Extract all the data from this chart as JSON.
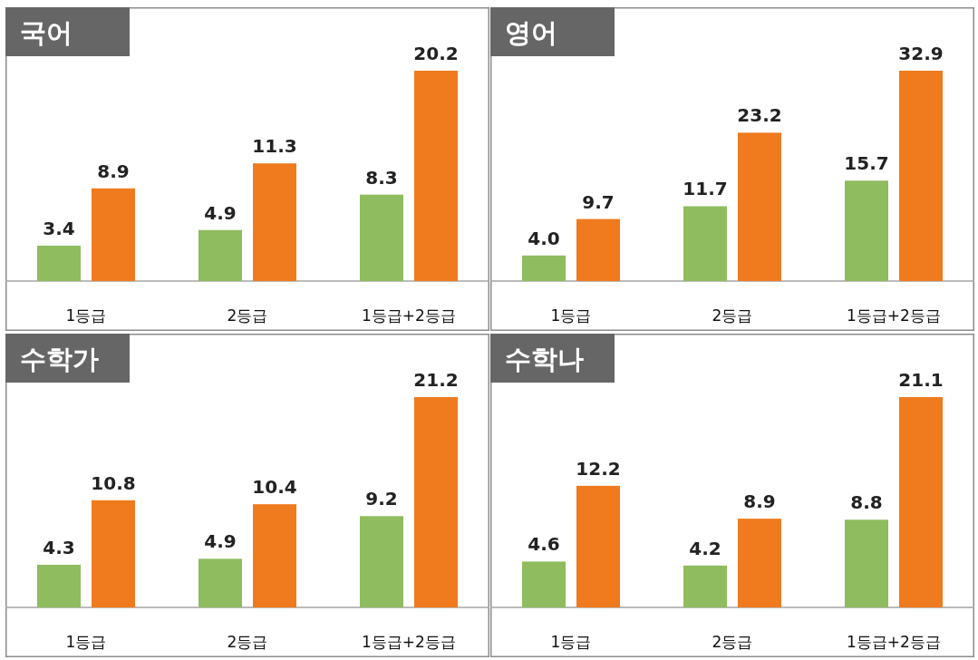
{
  "chart_data": [
    {
      "type": "bar",
      "title": "국어",
      "categories": [
        "1등급",
        "2등급",
        "1등급+2등급"
      ],
      "data_labels": true,
      "series": [
        {
          "color": "#8fbc5f",
          "values": [
            3.4,
            4.9,
            8.3
          ],
          "value_labels": [
            "3.4",
            "4.9",
            "8.3"
          ]
        },
        {
          "color": "#f07a1e",
          "values": [
            8.9,
            11.3,
            20.2
          ],
          "value_labels": [
            "8.9",
            "11.3",
            "20.2"
          ]
        }
      ]
    },
    {
      "type": "bar",
      "title": "영어",
      "categories": [
        "1등급",
        "2등급",
        "1등급+2등급"
      ],
      "data_labels": true,
      "series": [
        {
          "color": "#8fbc5f",
          "values": [
            4.0,
            11.7,
            15.7
          ],
          "value_labels": [
            "4.0",
            "11.7",
            "15.7"
          ]
        },
        {
          "color": "#f07a1e",
          "values": [
            9.7,
            23.2,
            32.9
          ],
          "value_labels": [
            "9.7",
            "23.2",
            "32.9"
          ]
        }
      ]
    },
    {
      "type": "bar",
      "title": "수학가",
      "categories": [
        "1등급",
        "2등급",
        "1등급+2등급"
      ],
      "data_labels": true,
      "series": [
        {
          "color": "#8fbc5f",
          "values": [
            4.3,
            4.9,
            9.2
          ],
          "value_labels": [
            "4.3",
            "4.9",
            "9.2"
          ]
        },
        {
          "color": "#f07a1e",
          "values": [
            10.8,
            10.4,
            21.2
          ],
          "value_labels": [
            "10.8",
            "10.4",
            "21.2"
          ]
        }
      ]
    },
    {
      "type": "bar",
      "title": "수학나",
      "categories": [
        "1등급",
        "2등급",
        "1등급+2등급"
      ],
      "data_labels": true,
      "series": [
        {
          "color": "#8fbc5f",
          "values": [
            4.6,
            4.2,
            8.8
          ],
          "value_labels": [
            "4.6",
            "4.2",
            "8.8"
          ]
        },
        {
          "color": "#f07a1e",
          "values": [
            12.2,
            8.9,
            21.1
          ],
          "value_labels": [
            "12.2",
            "8.9",
            "21.1"
          ]
        }
      ]
    }
  ]
}
